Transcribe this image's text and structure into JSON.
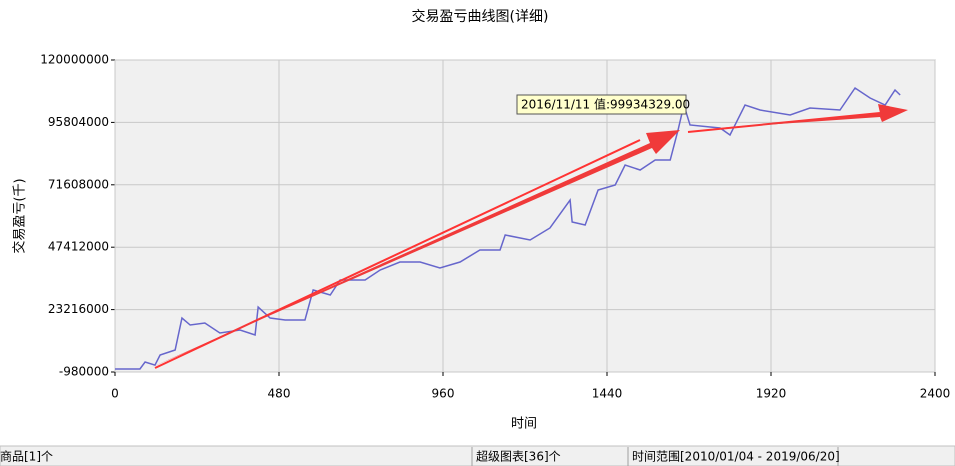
{
  "chart_data": {
    "type": "line",
    "title": "交易盈亏曲线图(详细)",
    "x_label": "时间",
    "y_label": "交易盈亏(千)",
    "annotation": "2016/11/11 值:99934329.00",
    "xlim": [
      0,
      2400
    ],
    "xticks": [
      0,
      480,
      960,
      1440,
      1920,
      2400
    ],
    "ylim": [
      -980000,
      120000000
    ],
    "yticks": [
      -980000,
      23216000,
      47412000,
      71608000,
      95804000,
      120000000
    ],
    "grid": true,
    "x": [
      0,
      73,
      88,
      117,
      132,
      176,
      196,
      220,
      263,
      307,
      366,
      410,
      419,
      454,
      498,
      556,
      580,
      630,
      659,
      732,
      776,
      834,
      893,
      951,
      1010,
      1068,
      1127,
      1142,
      1215,
      1273,
      1332,
      1338,
      1376,
      1414,
      1464,
      1493,
      1537,
      1581,
      1625,
      1648,
      1665,
      1683,
      1771,
      1800,
      1844,
      1888,
      1976,
      2034,
      2122,
      2166,
      2210,
      2254,
      2283,
      2298
    ],
    "series": [
      {
        "color": "#6666cc",
        "values": [
          200000,
          200000,
          2900000,
          1700000,
          5600000,
          7550000,
          19960000,
          17240000,
          18020000,
          14140000,
          15310000,
          13370000,
          24220000,
          19960000,
          19180000,
          19180000,
          30820000,
          28880000,
          34690000,
          34690000,
          38570000,
          41670000,
          41670000,
          39350000,
          41670000,
          46330000,
          46330000,
          52140000,
          50200000,
          54860000,
          65710000,
          57180000,
          56020000,
          69590000,
          71530000,
          79290000,
          77350000,
          81220000,
          81220000,
          92860000,
          102550000,
          94800000,
          93630000,
          90920000,
          102550000,
          100610000,
          98670000,
          101390000,
          100610000,
          109140000,
          105260000,
          102550000,
          108370000,
          106430000
        ]
      }
    ]
  },
  "status_bar": [
    "商品[1]个",
    "超级图表[36]个",
    "时间范围[2010/01/04 - 2019/06/20]"
  ]
}
